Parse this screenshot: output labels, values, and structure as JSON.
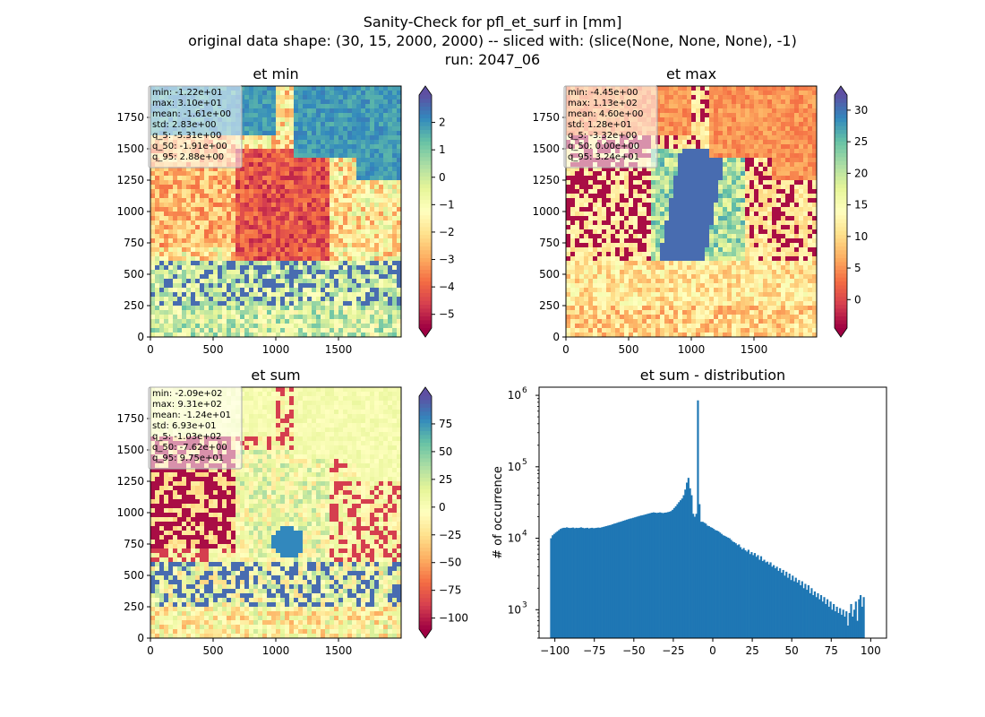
{
  "figure": {
    "title_lines": [
      "Sanity-Check for pfl_et_surf in [mm]",
      "original data shape: (30, 15, 2000, 2000) -- sliced with: (slice(None, None, None), -1)",
      "run: 2047_06"
    ]
  },
  "colors": {
    "cmap_spectral": [
      "#9e0142",
      "#d53e4f",
      "#f46d43",
      "#fdae61",
      "#fee08b",
      "#ffffbf",
      "#e6f598",
      "#abdda4",
      "#66c2a5",
      "#3288bd",
      "#5e4fa2"
    ],
    "hist_bar": "#1f77b4"
  },
  "chart_data": [
    {
      "type": "heatmap",
      "title": "et min",
      "xlim": [
        0,
        2000
      ],
      "ylim": [
        0,
        2000
      ],
      "x_ticks": [
        "0",
        "500",
        "1000",
        "1500"
      ],
      "y_ticks": [
        "0",
        "250",
        "500",
        "750",
        "1000",
        "1250",
        "1500",
        "1750"
      ],
      "colorbar": {
        "vmin": -5.5,
        "vmax": 3.0,
        "ticks": [
          "2",
          "1",
          "0",
          "−1",
          "−2",
          "−3",
          "−4",
          "−5"
        ],
        "tick_values": [
          2,
          1,
          0,
          -1,
          -2,
          -3,
          -4,
          -5
        ],
        "extend": "both"
      },
      "stats": [
        "min: -1.22e+01",
        "max: 3.10e+01",
        "mean: -1.61e+00",
        "std: 2.83e+00",
        "q_5: -5.31e+00",
        "q_50: -1.91e+00",
        "q_95: 2.88e+00"
      ]
    },
    {
      "type": "heatmap",
      "title": "et max",
      "xlim": [
        0,
        2000
      ],
      "ylim": [
        0,
        2000
      ],
      "x_ticks": [
        "0",
        "500",
        "1000",
        "1500"
      ],
      "y_ticks": [
        "0",
        "250",
        "500",
        "750",
        "1000",
        "1250",
        "1500",
        "1750"
      ],
      "colorbar": {
        "vmin": -4.5,
        "vmax": 32.4,
        "ticks": [
          "30",
          "25",
          "20",
          "15",
          "10",
          "5",
          "0"
        ],
        "tick_values": [
          30,
          25,
          20,
          15,
          10,
          5,
          0
        ],
        "extend": "both"
      },
      "stats": [
        "min: -4.45e+00",
        "max: 1.13e+02",
        "mean: 4.60e+00",
        "std: 1.28e+01",
        "q_5: -3.32e+00",
        "q_50: 0.00e+00",
        "q_95: 3.24e+01"
      ]
    },
    {
      "type": "heatmap",
      "title": "et sum",
      "xlim": [
        0,
        2000
      ],
      "ylim": [
        0,
        2000
      ],
      "x_ticks": [
        "0",
        "500",
        "1000",
        "1500"
      ],
      "y_ticks": [
        "0",
        "250",
        "500",
        "750",
        "1000",
        "1250",
        "1500",
        "1750"
      ],
      "colorbar": {
        "vmin": -110,
        "vmax": 100,
        "ticks": [
          "75",
          "50",
          "25",
          "0",
          "−25",
          "−50",
          "−75",
          "−100"
        ],
        "tick_values": [
          75,
          50,
          25,
          0,
          -25,
          -50,
          -75,
          -100
        ],
        "extend": "both"
      },
      "stats": [
        "min: -2.09e+02",
        "max: 9.31e+02",
        "mean: -1.24e+01",
        "std: 6.93e+01",
        "q_5: -1.03e+02",
        "q_50: -7.62e+00",
        "q_95: 9.75e+01"
      ]
    },
    {
      "type": "bar",
      "title": "et sum - distribution",
      "ylabel": "# of occurrence",
      "xlim": [
        -110,
        110
      ],
      "yscale": "log",
      "ylim": [
        400,
        1300000
      ],
      "x_ticks": [
        -100,
        -75,
        -50,
        -25,
        0,
        25,
        50,
        75,
        100
      ],
      "x_tick_labels": [
        "−100",
        "−75",
        "−50",
        "−25",
        "0",
        "25",
        "50",
        "75",
        "100"
      ],
      "y_ticks": [
        1000,
        10000,
        100000,
        1000000
      ],
      "y_tick_labels": [
        "10",
        "10",
        "10",
        "10"
      ],
      "y_tick_exponents": [
        "3",
        "4",
        "5",
        "6"
      ],
      "bins": {
        "start": -103,
        "width": 1
      },
      "values": [
        10000,
        11000,
        11500,
        12000,
        12500,
        13000,
        13500,
        13800,
        14000,
        14000,
        14200,
        14000,
        13900,
        14000,
        14100,
        13800,
        14000,
        13900,
        14000,
        14200,
        14000,
        13800,
        13900,
        14000,
        13700,
        13900,
        14000,
        13800,
        13900,
        14000,
        14100,
        14000,
        14200,
        14400,
        14600,
        14800,
        15000,
        15200,
        15400,
        15700,
        16000,
        16200,
        16500,
        16800,
        17000,
        17300,
        17600,
        17900,
        18200,
        18500,
        18800,
        19000,
        19300,
        19600,
        19900,
        20200,
        20500,
        20800,
        21000,
        21300,
        21600,
        21900,
        22200,
        22500,
        22800,
        23000,
        22800,
        22600,
        22800,
        23000,
        22700,
        22500,
        22800,
        22900,
        23200,
        23500,
        24000,
        25000,
        26500,
        28000,
        30000,
        32000,
        34000,
        36000,
        40000,
        48000,
        60000,
        70000,
        50000,
        40000,
        22000,
        20000,
        22000,
        850000,
        30000,
        17000,
        17000,
        16500,
        16000,
        15000,
        14800,
        14300,
        14000,
        13500,
        13000,
        12800,
        12500,
        12000,
        11500,
        11000,
        10800,
        10500,
        10200,
        10000,
        9500,
        9000,
        8800,
        8500,
        8000,
        8200,
        7500,
        7000,
        7300,
        6800,
        6500,
        6900,
        6000,
        6400,
        5800,
        6200,
        5500,
        5800,
        5000,
        5600,
        4800,
        5000,
        4600,
        4700,
        4300,
        4600,
        4000,
        4200,
        3800,
        4000,
        3500,
        3800,
        3300,
        3600,
        3000,
        3400,
        2800,
        3200,
        2600,
        3000,
        2500,
        2800,
        2400,
        2600,
        2200,
        2500,
        2000,
        2300,
        1900,
        2200,
        1700,
        2000,
        1600,
        1800,
        1500,
        1700,
        1400,
        1600,
        1300,
        1500,
        1200,
        1400,
        1100,
        1300,
        1000,
        1200,
        950,
        1100,
        900,
        1050,
        850,
        1000,
        800,
        950,
        600,
        900,
        1200,
        800,
        1000,
        1300,
        700,
        1400,
        1600,
        1100,
        1500
      ]
    }
  ]
}
